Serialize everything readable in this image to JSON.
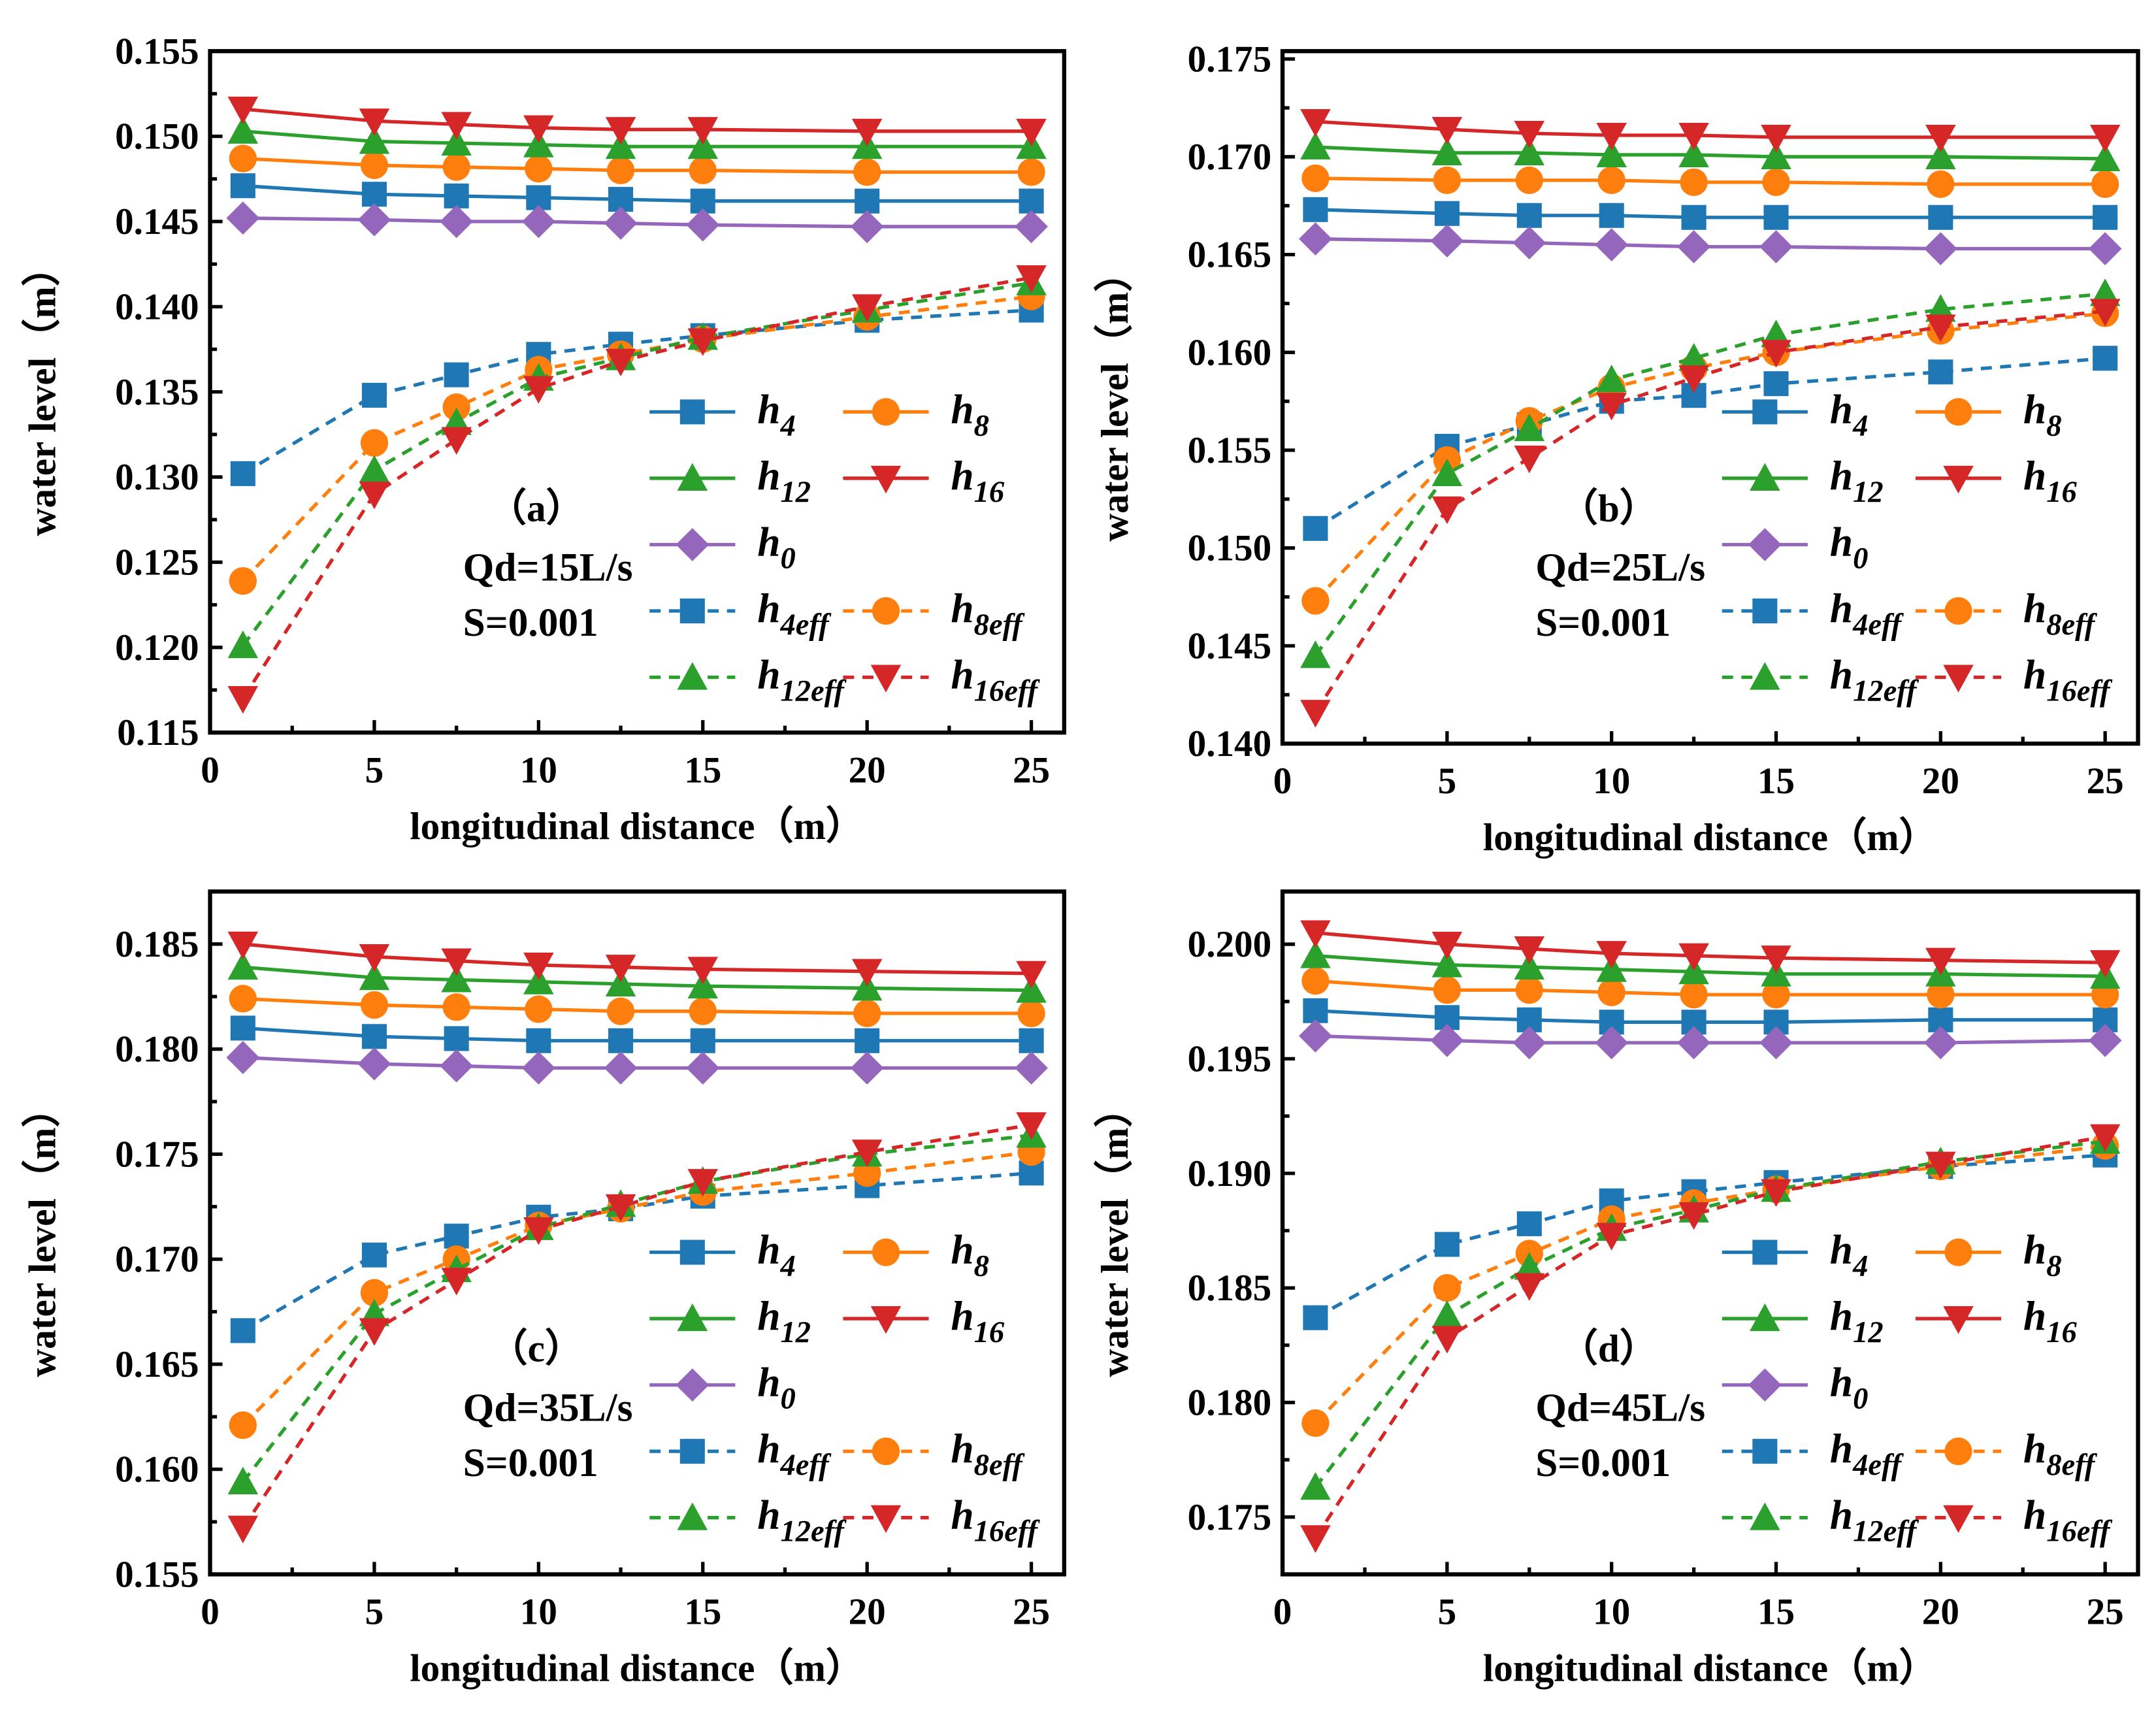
{
  "chart_data": [
    {
      "type": "line",
      "panel_label": "（a）",
      "annotations": [
        "Qd=15L/s",
        "S=0.001"
      ],
      "xlabel": "longitudinal distance（m）",
      "ylabel": "water level（m）",
      "xlim": [
        0,
        26
      ],
      "ylim": [
        0.115,
        0.155
      ],
      "xticks": [
        "0",
        "5",
        "10",
        "15",
        "20",
        "25"
      ],
      "yticks": [
        "0.115",
        "0.120",
        "0.125",
        "0.130",
        "0.135",
        "0.140",
        "0.145",
        "0.150",
        "0.155"
      ],
      "x": [
        1,
        5,
        7.5,
        10,
        12.5,
        15,
        20,
        25
      ],
      "series": [
        {
          "name": "h",
          "sub": "4",
          "values": [
            0.1471,
            0.1466,
            0.1465,
            0.1464,
            0.1463,
            0.1462,
            0.1462,
            0.1462
          ]
        },
        {
          "name": "h",
          "sub": "8",
          "values": [
            0.1487,
            0.1483,
            0.1482,
            0.1481,
            0.148,
            0.148,
            0.1479,
            0.1479
          ]
        },
        {
          "name": "h",
          "sub": "12",
          "values": [
            0.1503,
            0.1497,
            0.1496,
            0.1495,
            0.1494,
            0.1494,
            0.1494,
            0.1494
          ]
        },
        {
          "name": "h",
          "sub": "16",
          "values": [
            0.1516,
            0.1509,
            0.1507,
            0.1505,
            0.1504,
            0.1504,
            0.1503,
            0.1503
          ]
        },
        {
          "name": "h",
          "sub": "0",
          "values": [
            0.1452,
            0.1451,
            0.145,
            0.145,
            0.1449,
            0.1448,
            0.1447,
            0.1447
          ]
        },
        {
          "name": "h",
          "sub": "4eff",
          "values": [
            0.1302,
            0.1348,
            0.136,
            0.1372,
            0.1378,
            0.1383,
            0.1392,
            0.1398
          ]
        },
        {
          "name": "h",
          "sub": "8eff",
          "values": [
            0.1239,
            0.132,
            0.1341,
            0.1363,
            0.1372,
            0.1381,
            0.1394,
            0.1406
          ]
        },
        {
          "name": "h",
          "sub": "12eff",
          "values": [
            0.1201,
            0.1304,
            0.1332,
            0.1358,
            0.137,
            0.1382,
            0.1398,
            0.1414
          ]
        },
        {
          "name": "h",
          "sub": "16eff",
          "values": [
            0.117,
            0.129,
            0.1322,
            0.1352,
            0.1368,
            0.138,
            0.14,
            0.1417
          ]
        }
      ]
    },
    {
      "type": "line",
      "panel_label": "（b）",
      "annotations": [
        "Qd=25L/s",
        "S=0.001"
      ],
      "xlabel": "longitudinal distance（m）",
      "ylabel": "water level（m）",
      "xlim": [
        0,
        26
      ],
      "ylim": [
        0.14,
        0.1754
      ],
      "xticks": [
        "0",
        "5",
        "10",
        "15",
        "20",
        "25"
      ],
      "yticks": [
        "0.140",
        "0.145",
        "0.150",
        "0.155",
        "0.160",
        "0.165",
        "0.170",
        "0.175"
      ],
      "x": [
        1,
        5,
        7.5,
        10,
        12.5,
        15,
        20,
        25
      ],
      "series": [
        {
          "name": "h",
          "sub": "4",
          "values": [
            0.1673,
            0.1671,
            0.167,
            0.167,
            0.1669,
            0.1669,
            0.1669,
            0.1669
          ]
        },
        {
          "name": "h",
          "sub": "8",
          "values": [
            0.1689,
            0.1688,
            0.1688,
            0.1688,
            0.1687,
            0.1687,
            0.1686,
            0.1686
          ]
        },
        {
          "name": "h",
          "sub": "12",
          "values": [
            0.1705,
            0.1702,
            0.1702,
            0.1701,
            0.1701,
            0.17,
            0.17,
            0.1699
          ]
        },
        {
          "name": "h",
          "sub": "16",
          "values": [
            0.1718,
            0.1714,
            0.1712,
            0.1711,
            0.1711,
            0.171,
            0.171,
            0.171
          ]
        },
        {
          "name": "h",
          "sub": "0",
          "values": [
            0.1658,
            0.1657,
            0.1656,
            0.1655,
            0.1654,
            0.1654,
            0.1653,
            0.1653
          ]
        },
        {
          "name": "h",
          "sub": "4eff",
          "values": [
            0.151,
            0.1552,
            0.1563,
            0.1575,
            0.1578,
            0.1584,
            0.159,
            0.1597
          ]
        },
        {
          "name": "h",
          "sub": "8eff",
          "values": [
            0.1473,
            0.1545,
            0.1565,
            0.1582,
            0.1592,
            0.16,
            0.1611,
            0.162
          ]
        },
        {
          "name": "h",
          "sub": "12eff",
          "values": [
            0.1445,
            0.1538,
            0.1561,
            0.1586,
            0.1597,
            0.1609,
            0.1622,
            0.163
          ]
        },
        {
          "name": "h",
          "sub": "16eff",
          "values": [
            0.1416,
            0.152,
            0.1546,
            0.1573,
            0.1587,
            0.16,
            0.1613,
            0.1621
          ]
        }
      ]
    },
    {
      "type": "line",
      "panel_label": "（c）",
      "annotations": [
        "Qd=35L/s",
        "S=0.001"
      ],
      "xlabel": "longitudinal distance（m）",
      "ylabel": "water level（m）",
      "xlim": [
        0,
        26
      ],
      "ylim": [
        0.155,
        0.1875
      ],
      "xticks": [
        "0",
        "5",
        "10",
        "15",
        "20",
        "25"
      ],
      "yticks": [
        "0.155",
        "0.160",
        "0.165",
        "0.170",
        "0.175",
        "0.180",
        "0.185"
      ],
      "x": [
        1,
        5,
        7.5,
        10,
        12.5,
        15,
        20,
        25
      ],
      "series": [
        {
          "name": "h",
          "sub": "4",
          "values": [
            0.181,
            0.1806,
            0.1805,
            0.1804,
            0.1804,
            0.1804,
            0.1804,
            0.1804
          ]
        },
        {
          "name": "h",
          "sub": "8",
          "values": [
            0.1824,
            0.1821,
            0.182,
            0.1819,
            0.1818,
            0.1818,
            0.1817,
            0.1817
          ]
        },
        {
          "name": "h",
          "sub": "12",
          "values": [
            0.1839,
            0.1834,
            0.1833,
            0.1832,
            0.1831,
            0.183,
            0.1829,
            0.1828
          ]
        },
        {
          "name": "h",
          "sub": "16",
          "values": [
            0.185,
            0.1844,
            0.1842,
            0.184,
            0.1839,
            0.1838,
            0.1837,
            0.1836
          ]
        },
        {
          "name": "h",
          "sub": "0",
          "values": [
            0.1796,
            0.1793,
            0.1792,
            0.1791,
            0.1791,
            0.1791,
            0.1791,
            0.1791
          ]
        },
        {
          "name": "h",
          "sub": "4eff",
          "values": [
            0.1666,
            0.1702,
            0.1711,
            0.172,
            0.1724,
            0.173,
            0.1735,
            0.1741
          ]
        },
        {
          "name": "h",
          "sub": "8eff",
          "values": [
            0.1621,
            0.1684,
            0.17,
            0.1716,
            0.1724,
            0.1732,
            0.1741,
            0.1751
          ]
        },
        {
          "name": "h",
          "sub": "12eff",
          "values": [
            0.1594,
            0.1674,
            0.1695,
            0.1715,
            0.1726,
            0.1737,
            0.175,
            0.1759
          ]
        },
        {
          "name": "h",
          "sub": "16eff",
          "values": [
            0.1572,
            0.1666,
            0.169,
            0.1714,
            0.1725,
            0.1737,
            0.1751,
            0.1764
          ]
        }
      ]
    },
    {
      "type": "line",
      "panel_label": "（d）",
      "annotations": [
        "Qd=45L/s",
        "S=0.001"
      ],
      "xlabel": "longitudinal distance（m）",
      "ylabel": "water level（m）",
      "xlim": [
        0,
        26
      ],
      "ylim": [
        0.1725,
        0.2023
      ],
      "xticks": [
        "0",
        "5",
        "10",
        "15",
        "20",
        "25"
      ],
      "yticks": [
        "0.175",
        "0.180",
        "0.185",
        "0.190",
        "0.195",
        "0.200"
      ],
      "x": [
        1,
        5,
        7.5,
        10,
        12.5,
        15,
        20,
        25
      ],
      "series": [
        {
          "name": "h",
          "sub": "4",
          "values": [
            0.1971,
            0.1968,
            0.1967,
            0.1966,
            0.1966,
            0.1966,
            0.1967,
            0.1967
          ]
        },
        {
          "name": "h",
          "sub": "8",
          "values": [
            0.1984,
            0.198,
            0.198,
            0.1979,
            0.1978,
            0.1978,
            0.1978,
            0.1978
          ]
        },
        {
          "name": "h",
          "sub": "12",
          "values": [
            0.1995,
            0.1991,
            0.199,
            0.1989,
            0.1988,
            0.1987,
            0.1987,
            0.1986
          ]
        },
        {
          "name": "h",
          "sub": "16",
          "values": [
            0.2005,
            0.2,
            0.1998,
            0.1996,
            0.1995,
            0.1994,
            0.1993,
            0.1992
          ]
        },
        {
          "name": "h",
          "sub": "0",
          "values": [
            0.196,
            0.1958,
            0.1957,
            0.1957,
            0.1957,
            0.1957,
            0.1957,
            0.1958
          ]
        },
        {
          "name": "h",
          "sub": "4eff",
          "values": [
            0.1837,
            0.1869,
            0.1878,
            0.1888,
            0.1892,
            0.1896,
            0.1903,
            0.1908
          ]
        },
        {
          "name": "h",
          "sub": "8eff",
          "values": [
            0.1791,
            0.185,
            0.1865,
            0.188,
            0.1887,
            0.1893,
            0.1903,
            0.1912
          ]
        },
        {
          "name": "h",
          "sub": "12eff",
          "values": [
            0.1763,
            0.1838,
            0.1859,
            0.1876,
            0.1884,
            0.1893,
            0.1905,
            0.1914
          ]
        },
        {
          "name": "h",
          "sub": "16eff",
          "values": [
            0.1741,
            0.1828,
            0.1851,
            0.1873,
            0.1882,
            0.1892,
            0.1904,
            0.1916
          ]
        }
      ]
    }
  ],
  "style": {
    "colors": [
      "#1f77b4",
      "#ff7f0e",
      "#2ca02c",
      "#d62728",
      "#9467bd",
      "#1f77b4",
      "#ff7f0e",
      "#2ca02c",
      "#d62728"
    ],
    "markers": [
      "square",
      "circle",
      "triangle-up",
      "triangle-down",
      "diamond",
      "square",
      "circle",
      "triangle-up",
      "triangle-down"
    ],
    "dashed": [
      false,
      false,
      false,
      false,
      false,
      true,
      true,
      true,
      true
    ],
    "legend_placement": "bottom-right"
  }
}
